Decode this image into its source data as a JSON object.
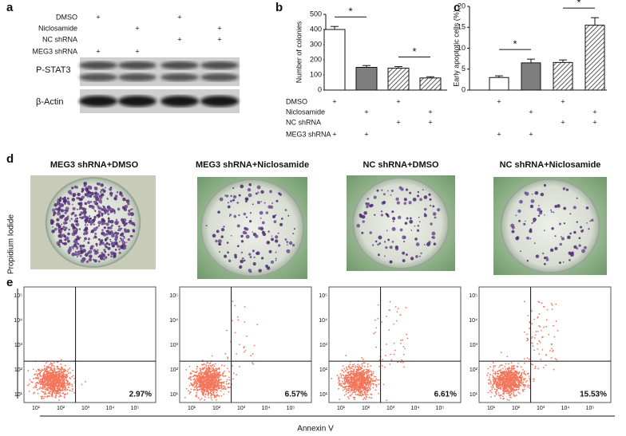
{
  "panel_labels": [
    "a",
    "b",
    "c",
    "d",
    "e"
  ],
  "conditions": [
    {
      "label": "DMSO",
      "marks": [
        "+",
        null,
        "+",
        null
      ]
    },
    {
      "label": "Niclosamide",
      "marks": [
        null,
        "+",
        null,
        "+"
      ]
    },
    {
      "label": "NC shRNA",
      "marks": [
        null,
        null,
        "+",
        "+"
      ]
    },
    {
      "label": "MEG3 shRNA",
      "marks": [
        "+",
        "+",
        null,
        null
      ]
    }
  ],
  "western_blot": {
    "bands": [
      "P-STAT3",
      "β-Actin"
    ]
  },
  "chart_data": [
    {
      "type": "bar",
      "y_label": "Number of colonies",
      "values": [
        400,
        150,
        145,
        80
      ],
      "errors": [
        20,
        12,
        10,
        8
      ],
      "fills": [
        "white",
        "#7f7f7f",
        "hatched",
        "hatched"
      ],
      "ylim": [
        0,
        500
      ],
      "yticks": [
        0,
        100,
        200,
        300,
        400,
        500
      ],
      "annotations": [
        {
          "text": "*",
          "between": [
            0,
            1
          ]
        },
        {
          "text": "*",
          "between": [
            2,
            3
          ]
        }
      ]
    },
    {
      "type": "bar",
      "y_label": "Early apoptotic cells (%)",
      "values": [
        3.0,
        6.5,
        6.6,
        15.5
      ],
      "errors": [
        0.4,
        0.9,
        0.6,
        1.8
      ],
      "fills": [
        "white",
        "#7f7f7f",
        "hatched",
        "hatched"
      ],
      "ylim": [
        0,
        20
      ],
      "yticks": [
        0,
        5,
        10,
        15,
        20
      ],
      "annotations": [
        {
          "text": "*",
          "between": [
            0,
            1
          ]
        },
        {
          "text": "*",
          "between": [
            2,
            3
          ]
        }
      ]
    }
  ],
  "colony_plates": {
    "titles": [
      "MEG3 shRNA+DMSO",
      "MEG3 shRNA+Niclosamide",
      "NC shRNA+DMSO",
      "NC shRNA+Niclosamide"
    ]
  },
  "flow_cytometry": {
    "x_label": "Annexin V",
    "y_label": "Propidium Iodide",
    "tick_labels": [
      "10¹",
      "10²",
      "10³",
      "10⁴",
      "10⁵"
    ],
    "percentages": [
      "2.97%",
      "6.57%",
      "6.61%",
      "15.53%"
    ]
  }
}
